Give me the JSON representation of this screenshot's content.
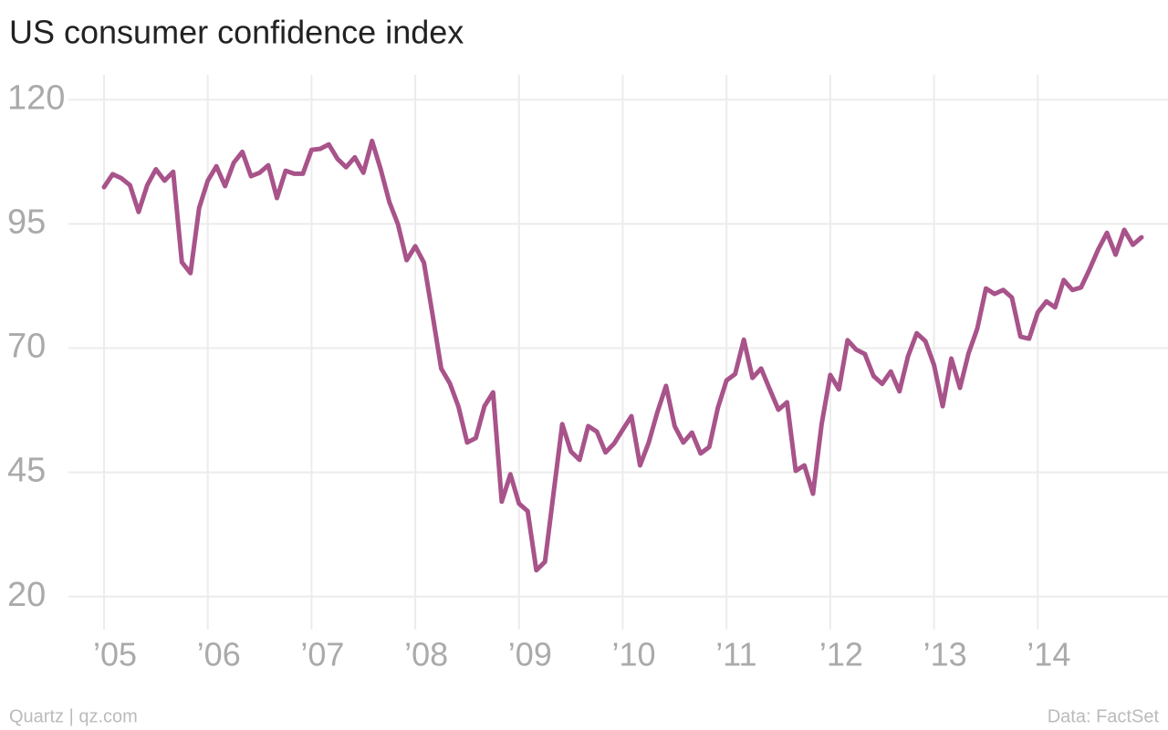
{
  "chart_data": {
    "type": "line",
    "title": "US consumer confidence index",
    "source_left": "Quartz | qz.com",
    "source_right": "Data: FactSet",
    "categories": [
      "’05",
      null,
      null,
      null,
      null,
      null,
      null,
      null,
      null,
      null,
      null,
      null,
      "’06",
      null,
      null,
      null,
      null,
      null,
      null,
      null,
      null,
      null,
      null,
      null,
      "’07",
      null,
      null,
      null,
      null,
      null,
      null,
      null,
      null,
      null,
      null,
      null,
      "’08",
      null,
      null,
      null,
      null,
      null,
      null,
      null,
      null,
      null,
      null,
      null,
      "’09",
      null,
      null,
      null,
      null,
      null,
      null,
      null,
      null,
      null,
      null,
      null,
      "’10",
      null,
      null,
      null,
      null,
      null,
      null,
      null,
      null,
      null,
      null,
      null,
      "’11",
      null,
      null,
      null,
      null,
      null,
      null,
      null,
      null,
      null,
      null,
      null,
      "’12",
      null,
      null,
      null,
      null,
      null,
      null,
      null,
      null,
      null,
      null,
      null,
      "’13",
      null,
      null,
      null,
      null,
      null,
      null,
      null,
      null,
      null,
      null,
      null,
      "’14",
      null,
      null,
      null,
      null,
      null,
      null,
      null,
      null,
      null,
      null,
      null,
      null
    ],
    "series": [
      {
        "name": "Consumer confidence",
        "color": "#a8538a",
        "values": [
          102.4,
          105,
          104.2,
          102.8,
          97.4,
          102.8,
          106,
          103.7,
          105.5,
          87.3,
          85.1,
          98.2,
          103.7,
          106.6,
          102.6,
          107.3,
          109.5,
          104.6,
          105.3,
          106.8,
          100.2,
          105.7,
          105.1,
          105.1,
          109.9,
          110.1,
          111,
          108.1,
          106.4,
          108.4,
          105.3,
          111.7,
          106,
          99.4,
          94.9,
          87.7,
          90.5,
          87.2,
          76.7,
          65.9,
          62.9,
          58.2,
          51,
          51.9,
          58.3,
          61.1,
          39.1,
          44.6,
          38.7,
          37.2,
          25.3,
          27,
          40.9,
          54.7,
          49.2,
          47.5,
          54.3,
          53.2,
          49,
          50.8,
          53.6,
          56.3,
          46.4,
          51,
          57.1,
          62.4,
          54.3,
          51,
          53,
          48.8,
          50.1,
          58,
          63.5,
          64.8,
          71.7,
          64,
          65.9,
          61.7,
          57.6,
          59.1,
          45.3,
          46.4,
          40.7,
          54.7,
          64.6,
          61.7,
          71.6,
          69.7,
          68.8,
          64.4,
          62.8,
          65.3,
          61.3,
          68.4,
          73,
          71.4,
          66.6,
          58.3,
          67.9,
          62,
          69,
          73.9,
          82,
          80.9,
          81.7,
          80.2,
          72.3,
          71.9,
          77.2,
          79.4,
          78.2,
          83.7,
          81.7,
          82.2,
          85.9,
          89.9,
          93.2,
          88.8,
          93.8,
          90.8,
          92.3
        ]
      }
    ],
    "ylim": [
      15,
      125
    ],
    "yticks": [
      20,
      45,
      70,
      95,
      120
    ],
    "grid": true
  }
}
